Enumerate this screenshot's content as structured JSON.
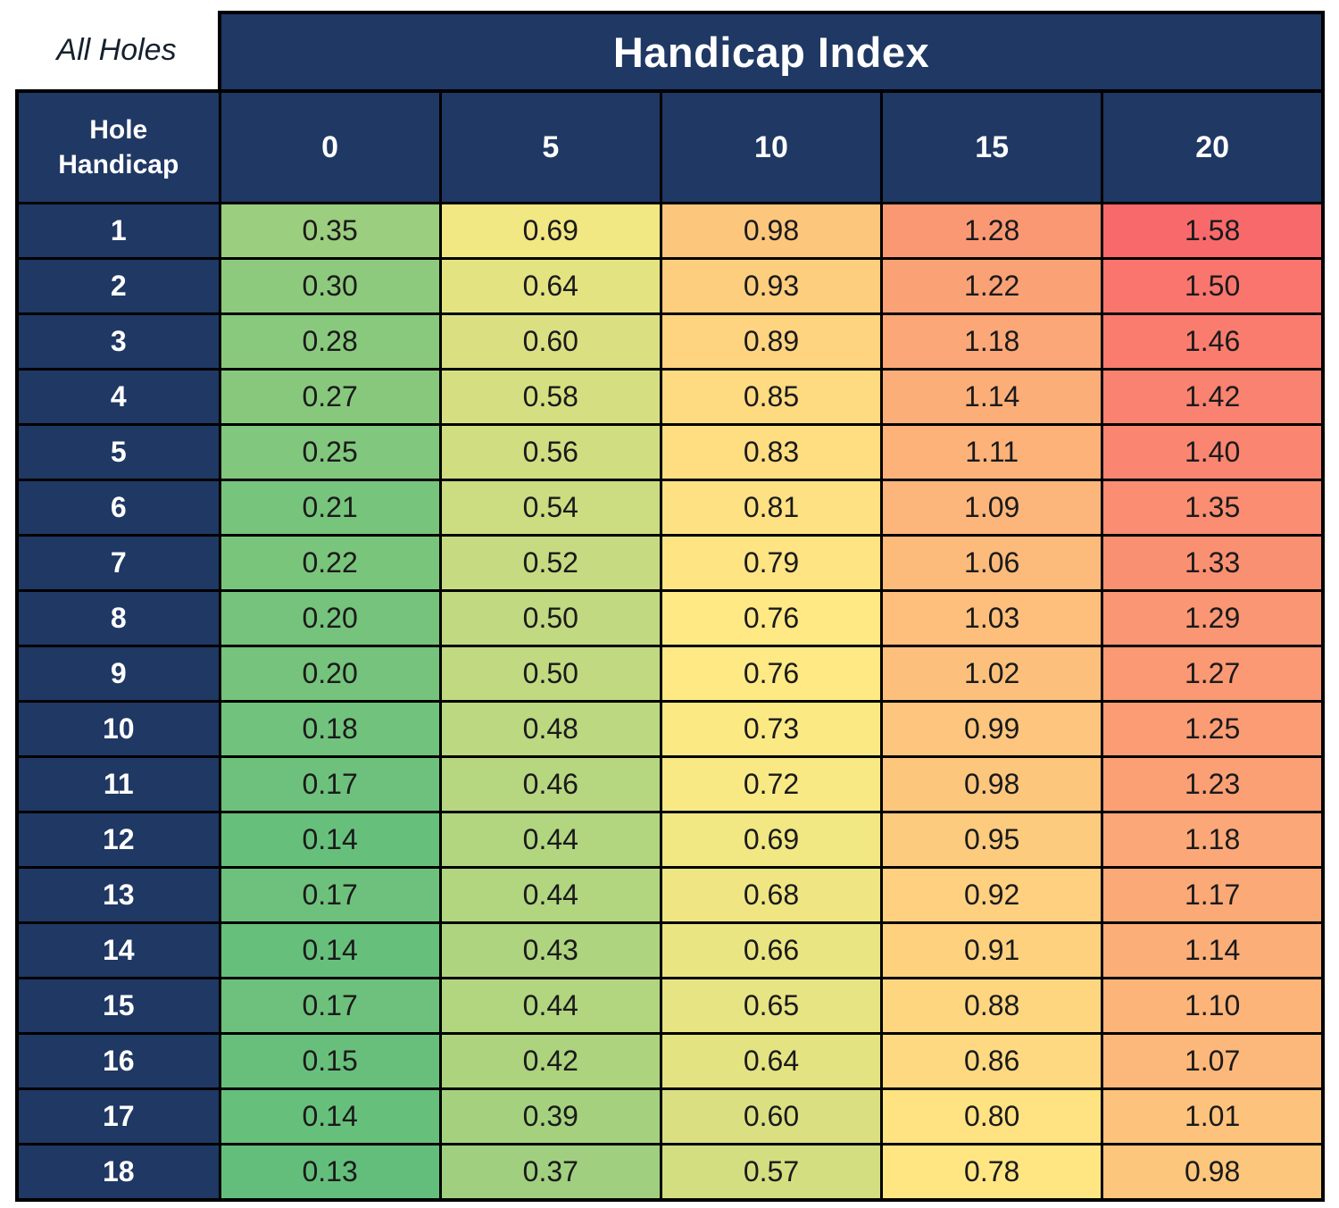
{
  "chart_data": {
    "type": "heatmap",
    "title": "Handicap Index",
    "corner_note": "All Holes",
    "row_header_lines": [
      "Hole",
      "Handicap"
    ],
    "columns": [
      "0",
      "5",
      "10",
      "15",
      "20"
    ],
    "row_labels": [
      "1",
      "2",
      "3",
      "4",
      "5",
      "6",
      "7",
      "8",
      "9",
      "10",
      "11",
      "12",
      "13",
      "14",
      "15",
      "16",
      "17",
      "18"
    ],
    "values": [
      [
        0.35,
        0.69,
        0.98,
        1.28,
        1.58
      ],
      [
        0.3,
        0.64,
        0.93,
        1.22,
        1.5
      ],
      [
        0.28,
        0.6,
        0.89,
        1.18,
        1.46
      ],
      [
        0.27,
        0.58,
        0.85,
        1.14,
        1.42
      ],
      [
        0.25,
        0.56,
        0.83,
        1.11,
        1.4
      ],
      [
        0.21,
        0.54,
        0.81,
        1.09,
        1.35
      ],
      [
        0.22,
        0.52,
        0.79,
        1.06,
        1.33
      ],
      [
        0.2,
        0.5,
        0.76,
        1.03,
        1.29
      ],
      [
        0.2,
        0.5,
        0.76,
        1.02,
        1.27
      ],
      [
        0.18,
        0.48,
        0.73,
        0.99,
        1.25
      ],
      [
        0.17,
        0.46,
        0.72,
        0.98,
        1.23
      ],
      [
        0.14,
        0.44,
        0.69,
        0.95,
        1.18
      ],
      [
        0.17,
        0.44,
        0.68,
        0.92,
        1.17
      ],
      [
        0.14,
        0.43,
        0.66,
        0.91,
        1.14
      ],
      [
        0.17,
        0.44,
        0.65,
        0.88,
        1.1
      ],
      [
        0.15,
        0.42,
        0.64,
        0.86,
        1.07
      ],
      [
        0.14,
        0.39,
        0.6,
        0.8,
        1.01
      ],
      [
        0.13,
        0.37,
        0.57,
        0.78,
        0.98
      ]
    ],
    "value_format_decimals": 2,
    "color_scale": {
      "min_value": 0.13,
      "min_color": "#63BE7B",
      "mid_value": 0.745,
      "mid_color": "#FFEB84",
      "max_value": 1.58,
      "max_color": "#F8696B"
    },
    "colors": {
      "header_bg": "#1F3864",
      "header_text": "#FFFFFF",
      "grid_line": "#000000",
      "value_text": "#1A1A1A"
    }
  }
}
